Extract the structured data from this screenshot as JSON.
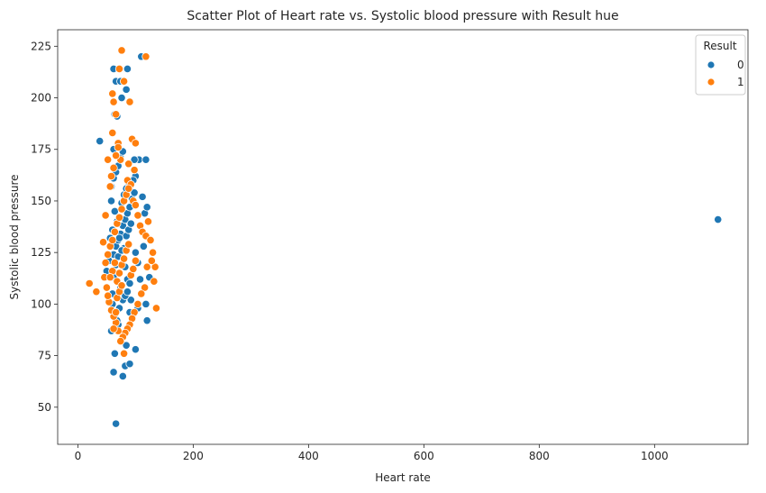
{
  "chart_data": {
    "type": "scatter",
    "title": "Scatter Plot of Heart rate vs. Systolic blood pressure with Result hue",
    "xlabel": "Heart rate",
    "ylabel": "Systolic blood pressure",
    "xlim": [
      -35,
      1162
    ],
    "ylim": [
      32,
      233
    ],
    "x_ticks": [
      0,
      200,
      400,
      600,
      800,
      1000
    ],
    "y_ticks": [
      50,
      75,
      100,
      125,
      150,
      175,
      200,
      225
    ],
    "grid": false,
    "legend": {
      "title": "Result",
      "placement": "top-right",
      "entries": [
        {
          "label": "0",
          "color": "#1f77b4"
        },
        {
          "label": "1",
          "color": "#ff7f0e"
        }
      ]
    },
    "series": [
      {
        "name": "0",
        "color": "#1f77b4",
        "points": [
          [
            66,
            42
          ],
          [
            62,
            67
          ],
          [
            82,
            70
          ],
          [
            90,
            71
          ],
          [
            78,
            65
          ],
          [
            64,
            76
          ],
          [
            100,
            78
          ],
          [
            84,
            80
          ],
          [
            58,
            87
          ],
          [
            70,
            90
          ],
          [
            96,
            95
          ],
          [
            120,
            92
          ],
          [
            104,
            98
          ],
          [
            92,
            102
          ],
          [
            60,
            105
          ],
          [
            74,
            108
          ],
          [
            50,
            116
          ],
          [
            54,
            121
          ],
          [
            62,
            124
          ],
          [
            66,
            128
          ],
          [
            70,
            131
          ],
          [
            74,
            134
          ],
          [
            78,
            138
          ],
          [
            82,
            141
          ],
          [
            86,
            144
          ],
          [
            90,
            147
          ],
          [
            94,
            151
          ],
          [
            98,
            154
          ],
          [
            58,
            157
          ],
          [
            62,
            161
          ],
          [
            66,
            164
          ],
          [
            70,
            167
          ],
          [
            74,
            171
          ],
          [
            78,
            174
          ],
          [
            82,
            118
          ],
          [
            86,
            112
          ],
          [
            90,
            110
          ],
          [
            62,
            113
          ],
          [
            66,
            119
          ],
          [
            70,
            123
          ],
          [
            80,
            127
          ],
          [
            84,
            133
          ],
          [
            88,
            136
          ],
          [
            92,
            139
          ],
          [
            76,
            149
          ],
          [
            80,
            153
          ],
          [
            84,
            156
          ],
          [
            88,
            159
          ],
          [
            64,
            145
          ],
          [
            68,
            140
          ],
          [
            72,
            132
          ],
          [
            76,
            126
          ],
          [
            56,
            132
          ],
          [
            60,
            136
          ],
          [
            100,
            125
          ],
          [
            104,
            120
          ],
          [
            108,
            112
          ],
          [
            112,
            152
          ],
          [
            116,
            144
          ],
          [
            120,
            147
          ],
          [
            124,
            113
          ],
          [
            118,
            100
          ],
          [
            114,
            128
          ],
          [
            58,
            150
          ],
          [
            62,
            175
          ],
          [
            64,
            192
          ],
          [
            68,
            191
          ],
          [
            76,
            200
          ],
          [
            66,
            208
          ],
          [
            62,
            214
          ],
          [
            86,
            214
          ],
          [
            74,
            208
          ],
          [
            84,
            204
          ],
          [
            110,
            220
          ],
          [
            38,
            179
          ],
          [
            106,
            170
          ],
          [
            118,
            170
          ],
          [
            98,
            170
          ],
          [
            100,
            162
          ],
          [
            96,
            160
          ],
          [
            72,
            98
          ],
          [
            78,
            102
          ],
          [
            82,
            104
          ],
          [
            86,
            106
          ],
          [
            90,
            96
          ],
          [
            60,
            100
          ],
          [
            64,
            94
          ],
          [
            68,
            92
          ],
          [
            1110,
            141
          ]
        ]
      },
      {
        "name": "1",
        "color": "#ff7f0e",
        "points": [
          [
            20,
            110
          ],
          [
            32,
            106
          ],
          [
            44,
            130
          ],
          [
            48,
            143
          ],
          [
            52,
            170
          ],
          [
            56,
            157
          ],
          [
            60,
            183
          ],
          [
            62,
            198
          ],
          [
            60,
            202
          ],
          [
            66,
            192
          ],
          [
            70,
            178
          ],
          [
            74,
            170
          ],
          [
            76,
            223
          ],
          [
            72,
            214
          ],
          [
            80,
            208
          ],
          [
            90,
            198
          ],
          [
            94,
            180
          ],
          [
            100,
            178
          ],
          [
            98,
            165
          ],
          [
            88,
            168
          ],
          [
            86,
            160
          ],
          [
            92,
            158
          ],
          [
            96,
            150
          ],
          [
            100,
            148
          ],
          [
            104,
            143
          ],
          [
            108,
            138
          ],
          [
            112,
            135
          ],
          [
            118,
            133
          ],
          [
            122,
            140
          ],
          [
            126,
            131
          ],
          [
            130,
            125
          ],
          [
            134,
            118
          ],
          [
            128,
            121
          ],
          [
            120,
            118
          ],
          [
            116,
            108
          ],
          [
            110,
            105
          ],
          [
            104,
            100
          ],
          [
            98,
            96
          ],
          [
            94,
            93
          ],
          [
            90,
            90
          ],
          [
            86,
            88
          ],
          [
            82,
            86
          ],
          [
            78,
            84
          ],
          [
            74,
            82
          ],
          [
            70,
            87
          ],
          [
            66,
            91
          ],
          [
            62,
            94
          ],
          [
            58,
            97
          ],
          [
            54,
            101
          ],
          [
            50,
            108
          ],
          [
            46,
            113
          ],
          [
            48,
            120
          ],
          [
            52,
            124
          ],
          [
            56,
            128
          ],
          [
            60,
            131
          ],
          [
            64,
            135
          ],
          [
            68,
            139
          ],
          [
            72,
            142
          ],
          [
            76,
            146
          ],
          [
            80,
            150
          ],
          [
            84,
            153
          ],
          [
            88,
            156
          ],
          [
            68,
            111
          ],
          [
            72,
            115
          ],
          [
            76,
            119
          ],
          [
            80,
            122
          ],
          [
            84,
            126
          ],
          [
            88,
            129
          ],
          [
            92,
            114
          ],
          [
            96,
            117
          ],
          [
            100,
            121
          ],
          [
            60,
            116
          ],
          [
            64,
            120
          ],
          [
            68,
            103
          ],
          [
            72,
            106
          ],
          [
            76,
            109
          ],
          [
            132,
            111
          ],
          [
            136,
            98
          ],
          [
            118,
            220
          ],
          [
            80,
            76
          ],
          [
            62,
            88
          ],
          [
            66,
            96
          ],
          [
            58,
            162
          ],
          [
            62,
            166
          ],
          [
            66,
            172
          ],
          [
            70,
            176
          ],
          [
            56,
            113
          ],
          [
            52,
            104
          ]
        ]
      }
    ]
  }
}
